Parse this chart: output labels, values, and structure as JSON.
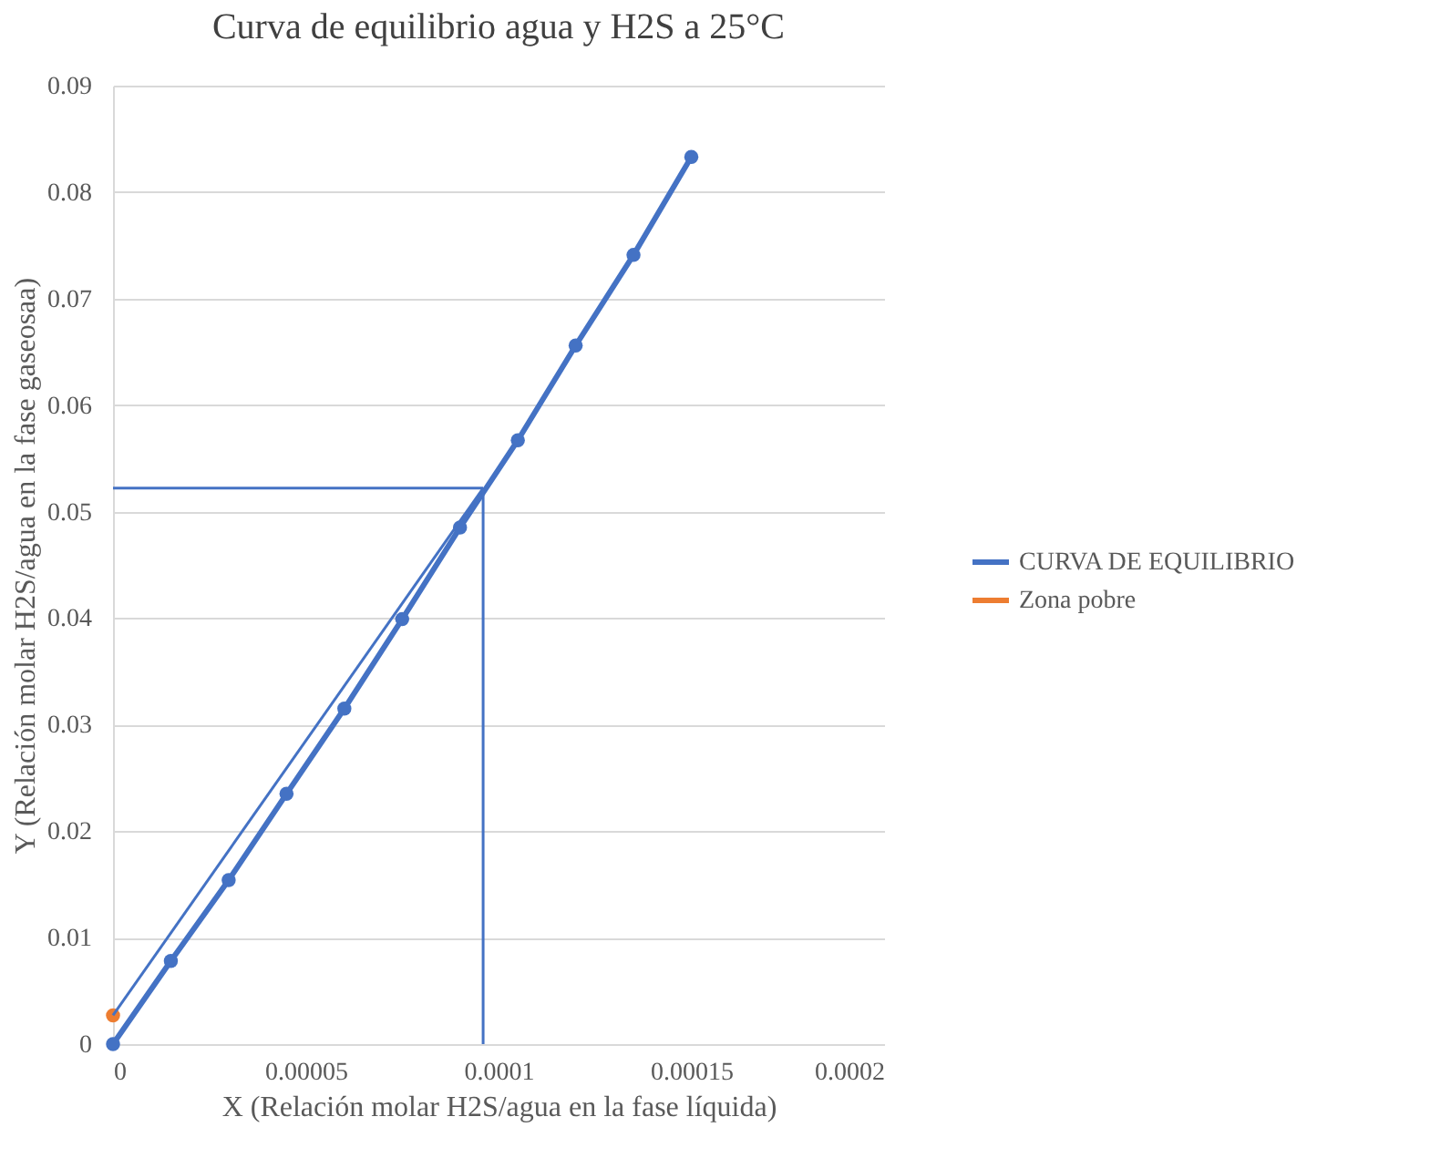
{
  "chart_data": {
    "type": "line",
    "title": "Curva de equilibrio agua y H2S a 25°C",
    "xlabel": "X (Relación molar H2S/agua en la fase líquida)",
    "ylabel": "Y (Relación molar H2S/agua en la fase gaseosaa)",
    "xlim": [
      0,
      0.0002
    ],
    "xticks": [
      0,
      {
        "value": 5e-05,
        "label": "0.00005"
      },
      0.0001,
      0.00015,
      0.0002
    ],
    "ylim": [
      0,
      0.09
    ],
    "yticks": [
      0,
      0.01,
      0.02,
      0.03,
      0.04,
      0.05,
      0.06,
      0.07,
      0.08,
      0.09
    ],
    "grid": "y",
    "legend": "right",
    "marker": "circle",
    "line_style": "solid",
    "series": [
      {
        "name": "CURVA DE EQUILIBRIO",
        "color": "#4472c4",
        "x": [
          0,
          1.5e-05,
          3e-05,
          4.5e-05,
          6e-05,
          7.5e-05,
          9e-05,
          0.000105,
          0.00012,
          0.000135,
          0.00015
        ],
        "values": [
          0,
          0.0078,
          0.0154,
          0.0235,
          0.0315,
          0.0399,
          0.0485,
          0.0567,
          0.0656,
          0.0741,
          0.0833
        ]
      },
      {
        "name": "Zona pobre",
        "color": "#ed7d31",
        "type": "scatter",
        "x": [
          0
        ],
        "values": [
          0.0027
        ]
      },
      {
        "color": "#4472c4",
        "type": "line",
        "marker": "none",
        "x": [
          0,
          9.6e-05
        ],
        "values": [
          0.0027,
          0.0522
        ]
      },
      {
        "color": "#4472c4",
        "type": "line",
        "marker": "none",
        "x": [
          0,
          9.6e-05
        ],
        "values": [
          0.0522,
          0.0522
        ]
      },
      {
        "color": "#4472c4",
        "type": "line",
        "marker": "none",
        "x": [
          9.6e-05,
          9.6e-05
        ],
        "values": [
          0.0522,
          0
        ]
      }
    ]
  }
}
